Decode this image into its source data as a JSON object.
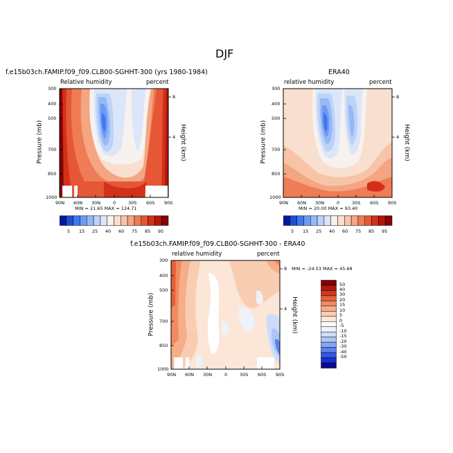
{
  "page_title": "DJF",
  "palette_rh": [
    "#061a99",
    "#1b4fd6",
    "#3f78ee",
    "#6d9af4",
    "#97b8f7",
    "#bdd2f9",
    "#dce6f9",
    "#f7f2f0",
    "#f9dfcf",
    "#f7c4a8",
    "#f4a582",
    "#ef7b57",
    "#e55735",
    "#d33019",
    "#b41509",
    "#860303"
  ],
  "palette_diff": [
    "#0a0a8e",
    "#1a2fcf",
    "#2f58ea",
    "#5c82f1",
    "#86a6f5",
    "#aec4f8",
    "#cfdcf9",
    "#eef2fa",
    "#ffffff",
    "#fbe6d8",
    "#f9cdb2",
    "#f6ae88",
    "#f08a60",
    "#e5603a",
    "#d0381e",
    "#b0180b",
    "#7e0202"
  ],
  "colorbar_rh": {
    "labels": [
      "5",
      "15",
      "25",
      "40",
      "60",
      "75",
      "85",
      "95"
    ]
  },
  "colorbar_diff": {
    "labels": [
      "50",
      "40",
      "30",
      "20",
      "15",
      "10",
      "5",
      "0",
      "-5",
      "-10",
      "-15",
      "-20",
      "-30",
      "-40",
      "-50"
    ]
  },
  "chart_data": [
    {
      "type": "heatmap",
      "title": "f.e15b03ch.FAMIP.f09_f09.CLB00-SGHHT-300 (yrs 1980-1984)",
      "left_string": "Relative humidity",
      "right_string": "percent",
      "ylabel": "Pressure (mb)",
      "ylabel_right": "Height (km)",
      "x_ticks": [
        "90N",
        "60N",
        "30N",
        "0",
        "30S",
        "60S",
        "90S"
      ],
      "y_ticks": [
        "300",
        "400",
        "500",
        "700",
        "850",
        "1000"
      ],
      "height_ticks": [
        "8",
        "4"
      ],
      "min_max_text": "MIN =   21.65   MAX =  124.71",
      "xlim": [
        90,
        -90
      ],
      "ylim": [
        1000,
        300
      ],
      "min": 21.65,
      "max": 124.71
    },
    {
      "type": "heatmap",
      "title": "ERA40",
      "left_string": "relative humidity",
      "right_string": "percent",
      "ylabel": "Pressure (mb)",
      "ylabel_right": "Height (km)",
      "x_ticks": [
        "90N",
        "60N",
        "30N",
        "0",
        "30S",
        "60S",
        "90S"
      ],
      "y_ticks": [
        "300",
        "400",
        "500",
        "700",
        "850",
        "1000"
      ],
      "height_ticks": [
        "8",
        "4"
      ],
      "min_max_text": "MIN =   20.00   MAX =   93.40",
      "xlim": [
        90,
        -90
      ],
      "ylim": [
        1000,
        300
      ],
      "min": 20.0,
      "max": 93.4
    },
    {
      "type": "heatmap",
      "title": "f.e15b03ch.FAMIP.f09_f09.CLB00-SGHHT-300 - ERA40",
      "left_string": "relative humidity",
      "right_string": "percent",
      "ylabel": "Pressure (mb)",
      "ylabel_right": "Height (km)",
      "x_ticks": [
        "90N",
        "60N",
        "30N",
        "0",
        "30S",
        "60S",
        "90S"
      ],
      "y_ticks": [
        "300",
        "400",
        "500",
        "700",
        "850",
        "1000"
      ],
      "height_ticks": [
        "8",
        "4"
      ],
      "min_max_text": "MIN =  -24.53   MAX =   45.68",
      "xlim": [
        90,
        -90
      ],
      "ylim": [
        1000,
        300
      ],
      "min": -24.53,
      "max": 45.68
    }
  ]
}
